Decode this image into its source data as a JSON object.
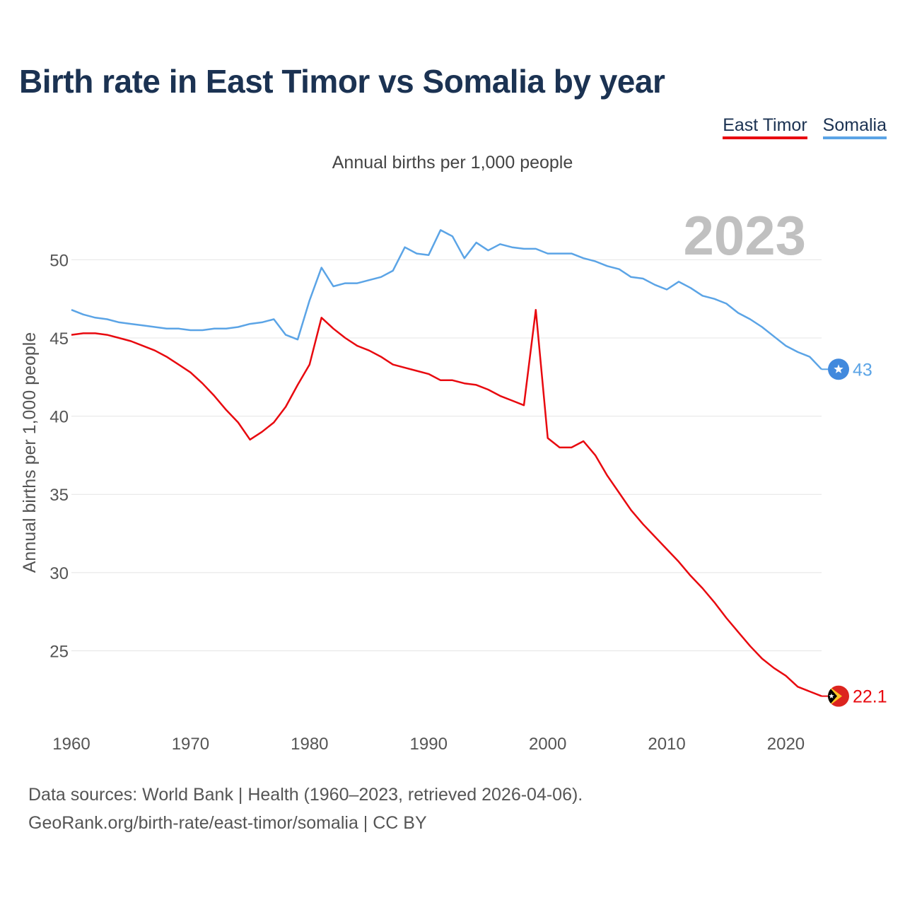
{
  "title": "Birth rate in East Timor vs Somalia by year",
  "legend": {
    "items": [
      "East Timor",
      "Somalia"
    ]
  },
  "footer": {
    "line1": "Data sources: World Bank | Health (1960–2023, retrieved 2026-04-06).",
    "line2": "GeoRank.org/birth-rate/east-timor/somalia | CC BY"
  },
  "chart_data": {
    "type": "line",
    "title": "Annual births per 1,000 people",
    "xlabel": "",
    "ylabel": "Annual births per 1,000 people",
    "year_label": "2023",
    "xlim": [
      1960,
      2023
    ],
    "ylim": [
      20.5,
      53.5
    ],
    "x_ticks": [
      1960,
      1970,
      1980,
      1990,
      2000,
      2010,
      2020
    ],
    "y_ticks": [
      25,
      30,
      35,
      40,
      45,
      50
    ],
    "grid": true,
    "legend_position": "top-right",
    "x": [
      1960,
      1961,
      1962,
      1963,
      1964,
      1965,
      1966,
      1967,
      1968,
      1969,
      1970,
      1971,
      1972,
      1973,
      1974,
      1975,
      1976,
      1977,
      1978,
      1979,
      1980,
      1981,
      1982,
      1983,
      1984,
      1985,
      1986,
      1987,
      1988,
      1989,
      1990,
      1991,
      1992,
      1993,
      1994,
      1995,
      1996,
      1997,
      1998,
      1999,
      2000,
      2001,
      2002,
      2003,
      2004,
      2005,
      2006,
      2007,
      2008,
      2009,
      2010,
      2011,
      2012,
      2013,
      2014,
      2015,
      2016,
      2017,
      2018,
      2019,
      2020,
      2021,
      2022,
      2023
    ],
    "series": [
      {
        "name": "East Timor",
        "color": "#e8090f",
        "values": [
          45.2,
          45.3,
          45.3,
          45.2,
          45.0,
          44.8,
          44.5,
          44.2,
          43.8,
          43.3,
          42.8,
          42.1,
          41.3,
          40.4,
          39.6,
          38.5,
          39.0,
          39.6,
          40.6,
          42.0,
          43.3,
          46.3,
          45.6,
          45.0,
          44.5,
          44.2,
          43.8,
          43.3,
          43.1,
          42.9,
          42.7,
          42.3,
          42.3,
          42.1,
          42.0,
          41.7,
          41.3,
          41.0,
          40.7,
          46.8,
          38.6,
          38.0,
          38.0,
          38.4,
          37.5,
          36.2,
          35.1,
          34.0,
          33.1,
          32.3,
          31.5,
          30.7,
          29.8,
          29.0,
          28.1,
          27.1,
          26.2,
          25.3,
          24.5,
          23.9,
          23.4,
          22.7,
          22.4,
          22.1
        ],
        "end_label": "22.1"
      },
      {
        "name": "Somalia",
        "color": "#5ba4e6",
        "values": [
          46.8,
          46.5,
          46.3,
          46.2,
          46.0,
          45.9,
          45.8,
          45.7,
          45.6,
          45.6,
          45.5,
          45.5,
          45.6,
          45.6,
          45.7,
          45.9,
          46.0,
          46.2,
          45.2,
          44.9,
          47.4,
          49.5,
          48.3,
          48.5,
          48.5,
          48.7,
          48.9,
          49.3,
          50.8,
          50.4,
          50.3,
          51.9,
          51.5,
          50.1,
          51.1,
          50.6,
          51.0,
          50.8,
          50.7,
          50.7,
          50.4,
          50.4,
          50.4,
          50.1,
          49.9,
          49.6,
          49.4,
          48.9,
          48.8,
          48.4,
          48.1,
          48.6,
          48.2,
          47.7,
          47.5,
          47.2,
          46.6,
          46.2,
          45.7,
          45.1,
          44.5,
          44.1,
          43.8,
          43.0
        ],
        "end_label": "43"
      }
    ]
  }
}
